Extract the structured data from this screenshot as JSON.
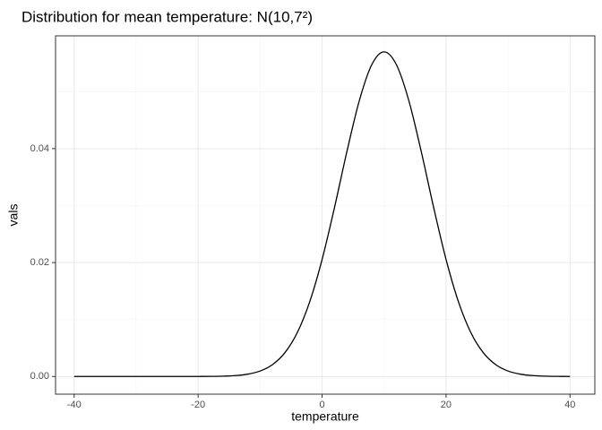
{
  "chart_data": {
    "type": "line",
    "title": "Distribution for mean temperature: N(10,7²)",
    "x_label": "temperature",
    "y_label": "vals",
    "x": [
      -40,
      -38,
      -36,
      -34,
      -32,
      -30,
      -28,
      -26,
      -24,
      -22,
      -20,
      -18,
      -16,
      -14,
      -12,
      -10,
      -8,
      -6,
      -4,
      -2,
      0,
      2,
      4,
      6,
      8,
      10,
      12,
      14,
      16,
      18,
      20,
      22,
      24,
      26,
      28,
      30,
      32,
      34,
      36,
      38,
      40
    ],
    "series": [
      {
        "color": "#000000",
        "values": [
          0,
          0,
          0,
          0,
          0,
          0,
          0,
          0,
          0,
          0,
          1e-05,
          2e-05,
          6e-05,
          0.00016,
          0.00041,
          0.00096,
          0.00209,
          0.00418,
          0.00771,
          0.01311,
          0.02054,
          0.02966,
          0.03947,
          0.0484,
          0.05471,
          0.05699,
          0.05471,
          0.0484,
          0.03947,
          0.02966,
          0.02054,
          0.01311,
          0.00771,
          0.00418,
          0.00209,
          0.00096,
          0.00041,
          0.00016,
          6e-05,
          2e-05,
          1e-05
        ]
      }
    ],
    "xlim": [
      -43,
      44
    ],
    "ylim": [
      -0.0031,
      0.0598
    ],
    "xticks": [
      -40,
      -20,
      0,
      20,
      40
    ],
    "yticks": [
      {
        "value": 0,
        "label": "0.00"
      },
      {
        "value": 0.02,
        "label": "0.02"
      },
      {
        "value": 0.04,
        "label": "0.04"
      }
    ],
    "xminor": [
      -30,
      -10,
      10,
      30
    ],
    "yminor": [
      0.01,
      0.03,
      0.05
    ],
    "grid": true
  }
}
